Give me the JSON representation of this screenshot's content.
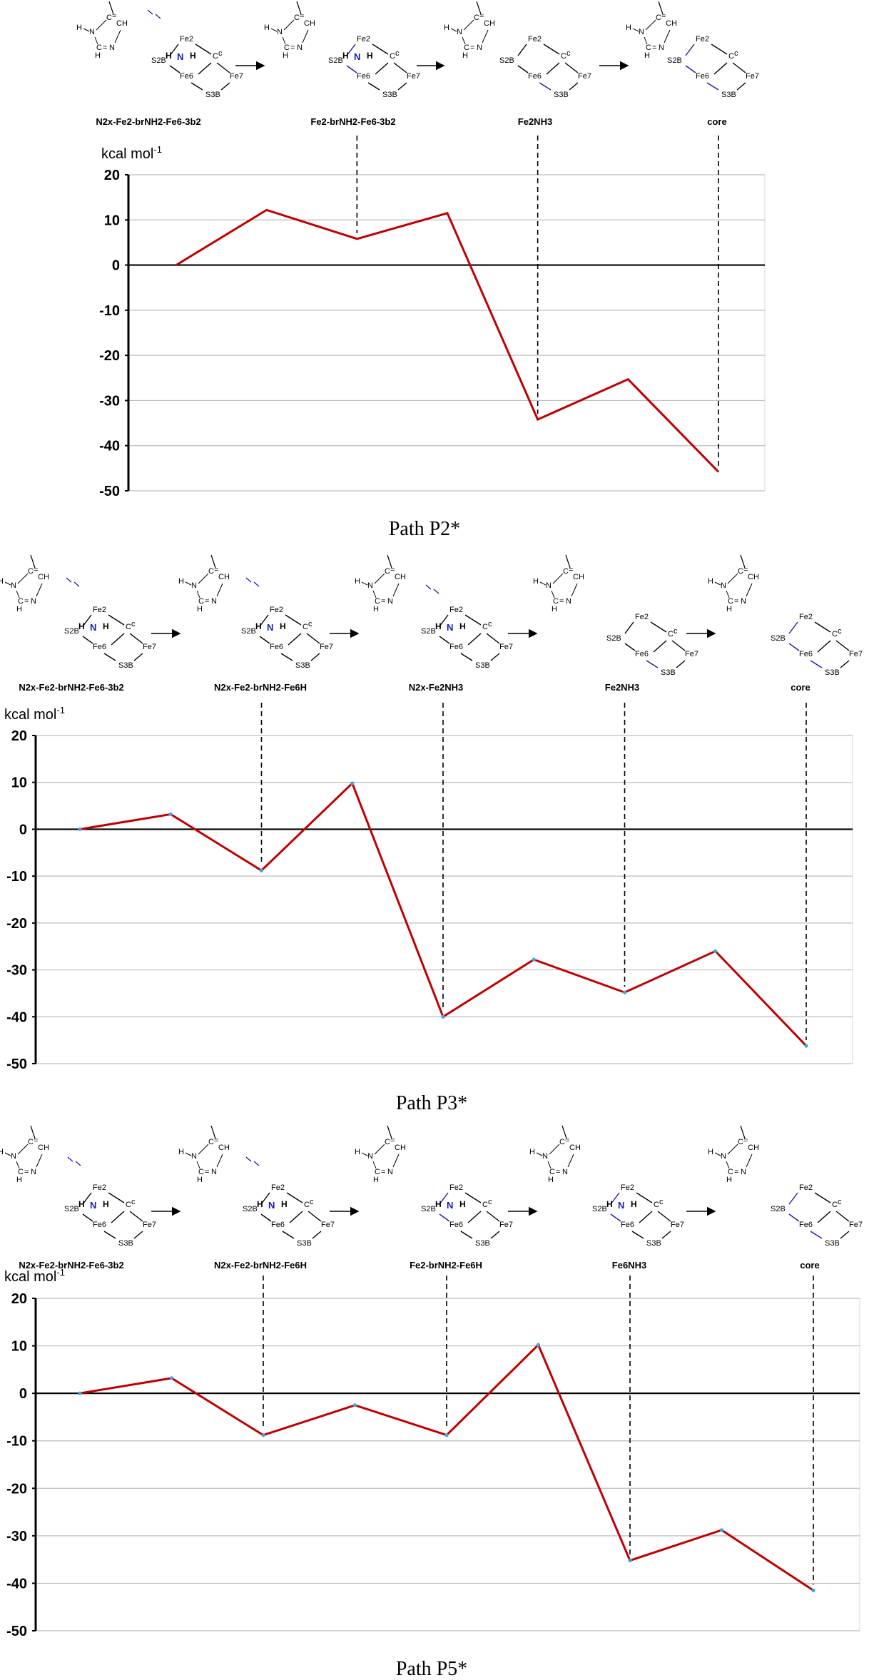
{
  "atoms": {
    "N": "N",
    "H": "H",
    "C": "C",
    "CH": "CH",
    "Cc": "C",
    "c_sup": "c",
    "Fe2": "Fe2",
    "Fe6": "Fe6",
    "Fe7": "Fe7",
    "S2B": "S2B",
    "S3B": "S3B",
    "HN": "H",
    "NN": "N",
    "NH": "H",
    "eq": "="
  },
  "colors": {
    "line": "#c00000",
    "marker": "#3aa8e0",
    "grid": "#bdbdbd",
    "bond_blue": "#1a1ab8"
  },
  "chart_data": [
    {
      "type": "line",
      "title": "",
      "caption": "Path P2*",
      "ylabel": "kcal mol",
      "ylabel_sup": "-1",
      "ylim": [
        -50,
        20
      ],
      "yticks": [
        "20",
        "10",
        "0",
        "-10",
        "-20",
        "-30",
        "-40",
        "-50"
      ],
      "grid": true,
      "markers": false,
      "x": [
        1,
        2,
        3,
        4,
        5,
        6,
        7
      ],
      "series": [
        {
          "values": [
            0,
            12.2,
            5.8,
            11.5,
            -34.2,
            -25.3,
            -45.8
          ]
        }
      ],
      "structures": [
        "N2x-Fe2-brNH2-Fe6-3b2",
        "Fe2-brNH2-Fe6-3b2",
        "Fe2NH3",
        "core"
      ],
      "dashed_at": [
        3,
        5,
        7
      ]
    },
    {
      "type": "line",
      "title": "",
      "caption": "Path P3*",
      "ylabel": "kcal mol",
      "ylabel_sup": "-1",
      "ylim": [
        -50,
        20
      ],
      "yticks": [
        "20",
        "10",
        "0",
        "-10",
        "-20",
        "-30",
        "-40",
        "-50"
      ],
      "grid": true,
      "markers": true,
      "x": [
        1,
        2,
        3,
        4,
        5,
        6,
        7,
        8,
        9
      ],
      "series": [
        {
          "values": [
            0,
            3.2,
            -8.8,
            9.8,
            -40.0,
            -27.8,
            -34.8,
            -26.0,
            -46.2
          ]
        }
      ],
      "structures": [
        "N2x-Fe2-brNH2-Fe6-3b2",
        "N2x-Fe2-brNH2-Fe6H",
        "N2x-Fe2NH3",
        "Fe2NH3",
        "core"
      ],
      "dashed_at": [
        3,
        5,
        7,
        9
      ]
    },
    {
      "type": "line",
      "title": "",
      "caption": "Path P5*",
      "ylabel": "kcal mol",
      "ylabel_sup": "-1",
      "ylim": [
        -50,
        20
      ],
      "yticks": [
        "20",
        "10",
        "0",
        "-10",
        "-20",
        "-30",
        "-40",
        "-50"
      ],
      "grid": true,
      "markers": true,
      "x": [
        1,
        2,
        3,
        4,
        5,
        6,
        7,
        8,
        9
      ],
      "series": [
        {
          "values": [
            0,
            3.2,
            -8.8,
            -2.5,
            -8.8,
            10.2,
            -35.2,
            -28.8,
            -41.5
          ]
        }
      ],
      "structures": [
        "N2x-Fe2-brNH2-Fe6-3b2",
        "N2x-Fe2-brNH2-Fe6H",
        "Fe2-brNH2-Fe6H",
        "Fe6NH3",
        "core"
      ],
      "dashed_at": [
        3,
        5,
        7,
        9
      ]
    }
  ]
}
